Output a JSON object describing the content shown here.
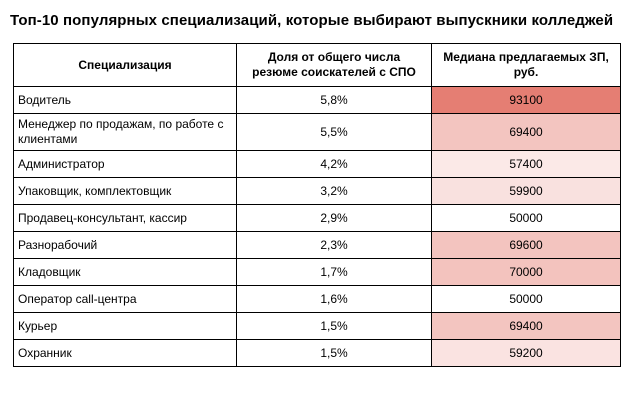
{
  "title": "Топ-10 популярных специализаций, которые выбирают выпускники колледжей",
  "table": {
    "columns": [
      "Специализация",
      "Доля от общего числа резюме соискателей с СПО",
      "Медиана предлагаемых ЗП, руб."
    ],
    "rows": [
      {
        "specialization": "Водитель",
        "share": "5,8%",
        "salary": "93100",
        "salary_color": "#E57E73"
      },
      {
        "specialization": "Менеджер по продажам, по работе с клиентами",
        "share": "5,5%",
        "salary": "69400",
        "salary_color": "#F3C5C0"
      },
      {
        "specialization": "Администратор",
        "share": "4,2%",
        "salary": "57400",
        "salary_color": "#FBE9E7"
      },
      {
        "specialization": "Упаковщик, комплектовщик",
        "share": "3,2%",
        "salary": "59900",
        "salary_color": "#F9E1DF"
      },
      {
        "specialization": "Продавец-консультант, кассир",
        "share": "2,9%",
        "salary": "50000",
        "salary_color": "#FFFFFF"
      },
      {
        "specialization": "Разнорабочий",
        "share": "2,3%",
        "salary": "69600",
        "salary_color": "#F3C4BF"
      },
      {
        "specialization": "Кладовщик",
        "share": "1,7%",
        "salary": "70000",
        "salary_color": "#F3C3BE"
      },
      {
        "specialization": "Оператор call-центра",
        "share": "1,6%",
        "salary": "50000",
        "salary_color": "#FFFFFF"
      },
      {
        "specialization": "Курьер",
        "share": "1,5%",
        "salary": "69400",
        "salary_color": "#F3C5C0"
      },
      {
        "specialization": "Охранник",
        "share": "1,5%",
        "salary": "59200",
        "salary_color": "#FAE3E1"
      }
    ]
  },
  "colors": {
    "border": "#000000",
    "text": "#000000",
    "background": "#FFFFFF",
    "scale_min_color": "#FFFFFF",
    "scale_max_color": "#E57E73"
  },
  "chart_data": {
    "type": "table",
    "title": "Топ-10 популярных специализаций, которые выбирают выпускники колледжей",
    "columns": [
      "Специализация",
      "Доля от общего числа резюме соискателей с СПО",
      "Медиана предлагаемых ЗП, руб."
    ],
    "rows": [
      [
        "Водитель",
        "5,8%",
        93100
      ],
      [
        "Менеджер по продажам, по работе с клиентами",
        "5,5%",
        69400
      ],
      [
        "Администратор",
        "4,2%",
        57400
      ],
      [
        "Упаковщик, комплектовщик",
        "3,2%",
        59900
      ],
      [
        "Продавец-консультант, кассир",
        "2,9%",
        50000
      ],
      [
        "Разнорабочий",
        "2,3%",
        69600
      ],
      [
        "Кладовщик",
        "1,7%",
        70000
      ],
      [
        "Оператор call-центра",
        "1,6%",
        50000
      ],
      [
        "Курьер",
        "1,5%",
        69400
      ],
      [
        "Охранник",
        "1,5%",
        59200
      ]
    ],
    "color_scale": {
      "applies_to_column": "Медиана предлагаемых ЗП, руб.",
      "min_value": 50000,
      "max_value": 93100,
      "min_color": "#FFFFFF",
      "max_color": "#E57E73"
    }
  }
}
